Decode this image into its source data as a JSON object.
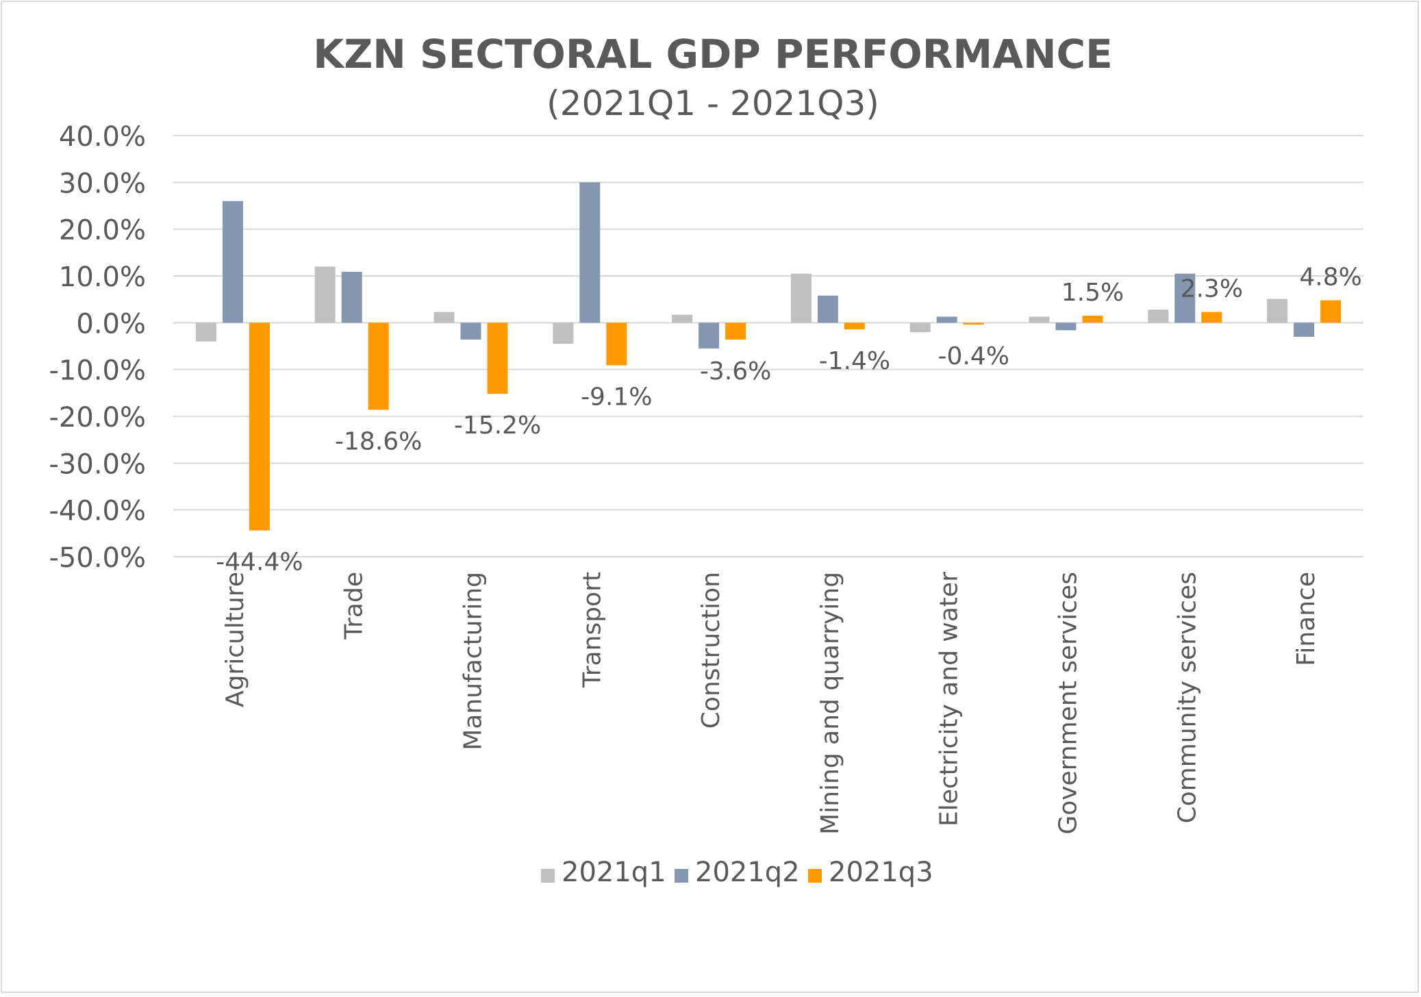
{
  "chart_data": {
    "type": "bar",
    "title": "KZN SECTORAL GDP PERFORMANCE",
    "subtitle": "(2021Q1 - 2021Q3)",
    "categories": [
      "Agriculture",
      "Trade",
      "Manufacturing",
      "Transport",
      "Construction",
      "Mining and quarrying",
      "Electricity and water",
      "Government services",
      "Community services",
      "Finance"
    ],
    "series": [
      {
        "name": "2021q1",
        "color": "#bfbfbf",
        "values": [
          -4.0,
          12.0,
          2.3,
          -4.5,
          1.7,
          10.5,
          -2.0,
          1.3,
          2.8,
          5.1
        ]
      },
      {
        "name": "2021q2",
        "color": "#8497b0",
        "values": [
          26.0,
          10.9,
          -3.6,
          30.0,
          -5.5,
          5.8,
          1.3,
          -1.6,
          10.5,
          -3.0
        ]
      },
      {
        "name": "2021q3",
        "color": "#ff9900",
        "values": [
          -44.4,
          -18.6,
          -15.2,
          -9.1,
          -3.6,
          -1.4,
          -0.4,
          1.5,
          2.3,
          4.8
        ],
        "data_labels": [
          "-44.4%",
          "-18.6%",
          "-15.2%",
          "-9.1%",
          "-3.6%",
          "-1.4%",
          "-0.4%",
          "1.5%",
          "2.3%",
          "4.8%"
        ]
      }
    ],
    "yticks": [
      "40.0%",
      "30.0%",
      "20.0%",
      "10.0%",
      "0.0%",
      "-10.0%",
      "-20.0%",
      "-30.0%",
      "-40.0%",
      "-50.0%"
    ],
    "ylim": [
      -50,
      40
    ],
    "ystep": 10,
    "grid": true,
    "legend_position": "bottom"
  }
}
